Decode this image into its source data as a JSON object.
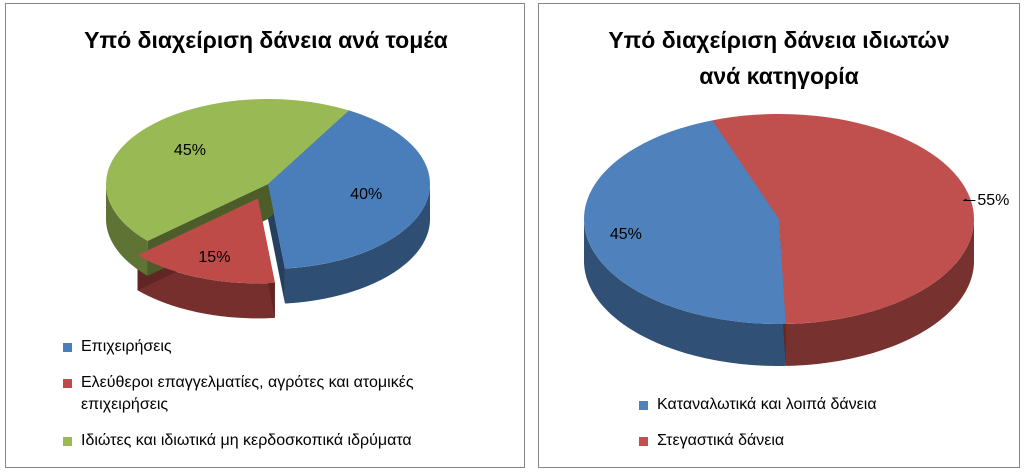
{
  "chart_data": [
    {
      "type": "pie",
      "title": "Υπό διαχείριση δάνεια ανά τομέα",
      "categories": [
        "Επιχειρήσεις",
        "Ελεύθεροι επαγγελματίες, αγρότες και ατομικές επιχειρήσεις",
        "Ιδιώτες και ιδιωτικά μη κερδοσκοπικά ιδρύματα"
      ],
      "values": [
        40,
        15,
        45
      ],
      "value_labels": [
        "40%",
        "15%",
        "45%"
      ],
      "colors": [
        "#4a7ebb",
        "#be4b48",
        "#98b954"
      ],
      "legend": "bottom"
    },
    {
      "type": "pie",
      "title": "Υπό διαχείριση δάνεια ιδιωτών ανά κατηγορία",
      "categories": [
        "Καταναλωτικά και λοιπά δάνεια",
        "Στεγαστικά δάνεια"
      ],
      "values": [
        45,
        55
      ],
      "value_labels": [
        "45%",
        "55%"
      ],
      "colors": [
        "#4f81bd",
        "#c0504d"
      ],
      "legend": "bottom"
    }
  ]
}
